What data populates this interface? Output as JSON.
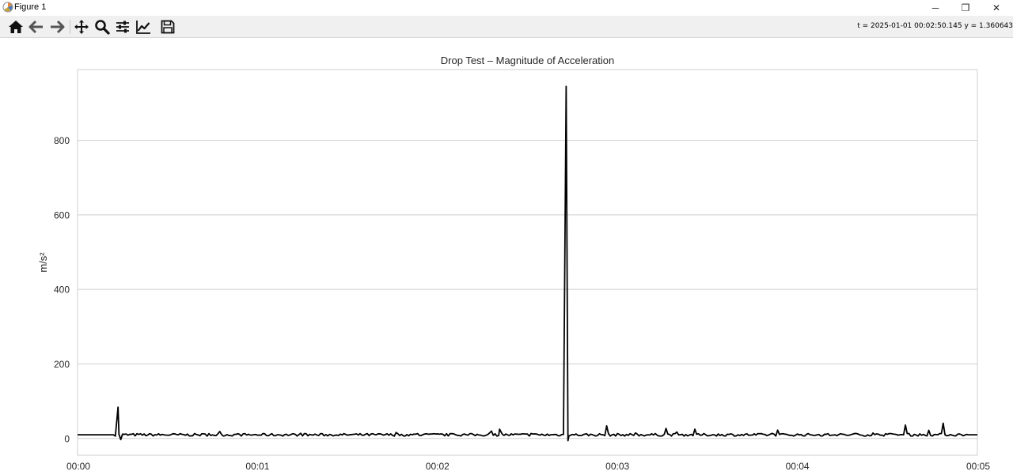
{
  "window": {
    "title": "Figure 1",
    "minimize_label": "─",
    "restore_label": "❐",
    "close_label": "✕"
  },
  "toolbar": {
    "buttons": [
      {
        "name": "home-icon",
        "tooltip": "Reset original view"
      },
      {
        "name": "back-arrow-icon",
        "tooltip": "Back to previous view"
      },
      {
        "name": "forward-arrow-icon",
        "tooltip": "Forward to next view"
      },
      {
        "name": "pan-icon",
        "tooltip": "Pan axes"
      },
      {
        "name": "zoom-icon",
        "tooltip": "Zoom to rectangle"
      },
      {
        "name": "subplots-icon",
        "tooltip": "Configure subplots"
      },
      {
        "name": "edit-axis-icon",
        "tooltip": "Edit axis"
      },
      {
        "name": "save-icon",
        "tooltip": "Save the figure"
      }
    ],
    "coordinates": "t = 2025-01-01 00:02:50.145  y = 1.360643"
  },
  "chart_data": {
    "type": "line",
    "title": "Drop Test – Magnitude of Acceleration",
    "xlabel": "",
    "ylabel": "m/s²",
    "x_unit": "seconds",
    "x_ticks": [
      0,
      1,
      2,
      3,
      4,
      5
    ],
    "x_tick_labels": [
      "00:00",
      "00:01",
      "00:02",
      "00:03",
      "00:04",
      "00:05"
    ],
    "y_ticks": [
      0,
      200,
      400,
      600,
      800
    ],
    "y_tick_labels": [
      "0",
      "200",
      "400",
      "600",
      "800"
    ],
    "xlim": [
      0,
      5
    ],
    "ylim": [
      -45,
      990
    ],
    "grid": "y",
    "line_color": "#000000",
    "baseline": 9.8,
    "sample_count": 500,
    "peaks": [
      {
        "x": 0.225,
        "y": 84
      },
      {
        "x": 0.24,
        "y": -3
      },
      {
        "x": 2.345,
        "y": 25
      },
      {
        "x": 2.715,
        "y": 945
      },
      {
        "x": 2.725,
        "y": -6
      },
      {
        "x": 2.94,
        "y": 34
      },
      {
        "x": 3.27,
        "y": 27
      },
      {
        "x": 3.43,
        "y": 25
      },
      {
        "x": 4.6,
        "y": 36
      },
      {
        "x": 4.81,
        "y": 41
      }
    ]
  }
}
